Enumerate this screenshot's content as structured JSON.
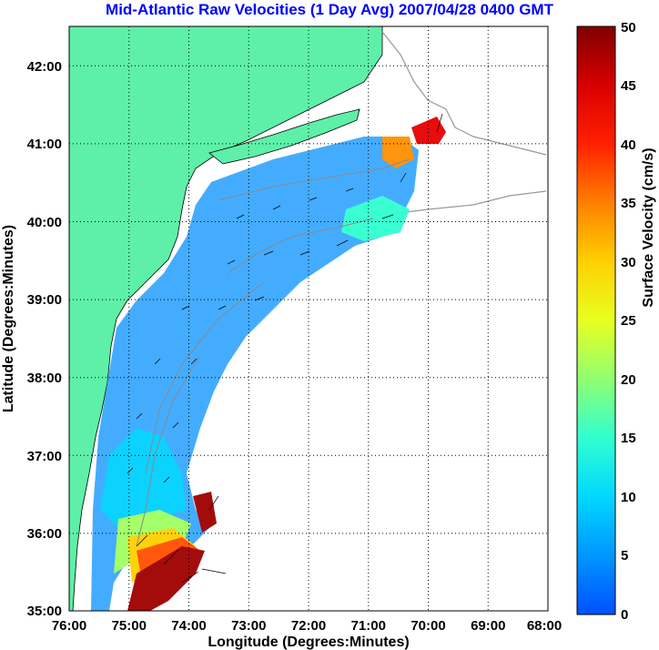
{
  "title": "Mid-Atlantic Raw Velocities (1 Day Avg) 2007/04/28 0400 GMT",
  "xlabel": "Longitude (Degrees:Minutes)",
  "ylabel": "Latitude (Degrees:Minutes)",
  "colorbar_label": "Surface Velocity (cm/s)",
  "x_ticks": [
    "76:00",
    "75:00",
    "74:00",
    "73:00",
    "72:00",
    "71:00",
    "70:00",
    "69:00",
    "68:00"
  ],
  "y_ticks": [
    "42:00",
    "41:00",
    "40:00",
    "39:00",
    "38:00",
    "37:00",
    "36:00",
    "35:00"
  ],
  "colorbar_ticks": [
    "50",
    "45",
    "40",
    "35",
    "30",
    "25",
    "20",
    "15",
    "10",
    "5",
    "0"
  ],
  "colors": {
    "land": "#5ef0a8",
    "title": "#0000ff",
    "grid": "#000000"
  },
  "map_data": {
    "lon_range": [
      -76,
      -68
    ],
    "lat_range": [
      35,
      42.5
    ],
    "velocity_range_cms": [
      0,
      50
    ],
    "grid": "dotted"
  }
}
